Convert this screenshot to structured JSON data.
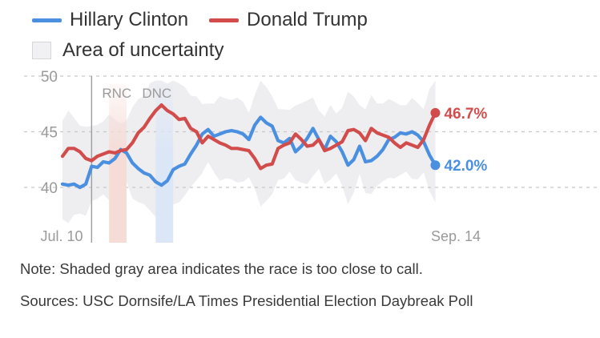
{
  "legend": {
    "clinton": "Hillary Clinton",
    "trump": "Donald Trump",
    "uncertainty": "Area of uncertainty"
  },
  "colors": {
    "clinton": "#4a8fe0",
    "trump": "#d24c4c",
    "uncertainty": "#eeeef1",
    "rnc_band": "#f6dcd7",
    "dnc_band": "#dbe6f6",
    "grid": "#c8c8c8",
    "axis_text": "#9a9a9a"
  },
  "notes": {
    "note": "Note: Shaded gray area indicates the race is too close to call.",
    "sources": "Sources: USC Dornsife/LA Times Presidential Election Daybreak Poll"
  },
  "chart_data": {
    "type": "line",
    "title": "",
    "xlabel": "",
    "ylabel": "",
    "x_range": [
      0,
      66
    ],
    "ylim": [
      37,
      50
    ],
    "yticks": [
      40,
      45,
      50
    ],
    "x_labels": [
      {
        "x": 0,
        "label": "Jul. 10"
      },
      {
        "x": 66,
        "label": "Sep. 14"
      }
    ],
    "events": [
      {
        "label": "RNC",
        "x": 5,
        "band": [
          8,
          11
        ]
      },
      {
        "label": "DNC",
        "x": 13,
        "band": [
          16,
          19
        ]
      }
    ],
    "series": [
      {
        "name": "Hillary Clinton",
        "key": "clinton",
        "end_label": "42.0%",
        "values": [
          40.3,
          40.2,
          40.3,
          40.0,
          40.3,
          41.9,
          41.8,
          42.3,
          42.2,
          42.6,
          43.4,
          43.1,
          42.2,
          41.7,
          41.3,
          41.1,
          40.5,
          40.2,
          40.6,
          41.6,
          41.9,
          42.1,
          43.0,
          43.8,
          44.8,
          45.2,
          44.6,
          44.8,
          45.0,
          45.1,
          45.0,
          44.8,
          44.3,
          45.6,
          46.3,
          45.8,
          45.5,
          44.2,
          44.0,
          44.4,
          43.2,
          43.7,
          44.4,
          45.3,
          44.3,
          43.4,
          44.6,
          44.1,
          43.2,
          42.0,
          42.5,
          43.7,
          42.3,
          42.4,
          42.8,
          43.4,
          44.3,
          44.5,
          44.9,
          44.8,
          45.0,
          44.7,
          44.1,
          42.9,
          42.0
        ]
      },
      {
        "name": "Donald Trump",
        "key": "trump",
        "end_label": "46.7%",
        "values": [
          42.8,
          43.5,
          43.5,
          43.2,
          42.6,
          42.4,
          42.8,
          43.0,
          43.2,
          43.1,
          43.3,
          43.4,
          44.0,
          44.9,
          45.4,
          46.2,
          46.9,
          47.4,
          46.9,
          46.6,
          46.1,
          46.2,
          45.3,
          45.0,
          44.0,
          44.6,
          44.3,
          44.0,
          43.8,
          43.5,
          43.5,
          43.4,
          43.3,
          42.6,
          41.7,
          42.0,
          42.1,
          43.5,
          43.8,
          44.0,
          44.8,
          44.3,
          43.7,
          43.8,
          44.3,
          43.3,
          43.5,
          43.8,
          44.1,
          45.1,
          45.2,
          44.9,
          44.2,
          45.3,
          44.9,
          44.7,
          44.5,
          44.0,
          43.6,
          44.0,
          43.8,
          43.6,
          44.3,
          45.6,
          46.7
        ]
      }
    ]
  }
}
